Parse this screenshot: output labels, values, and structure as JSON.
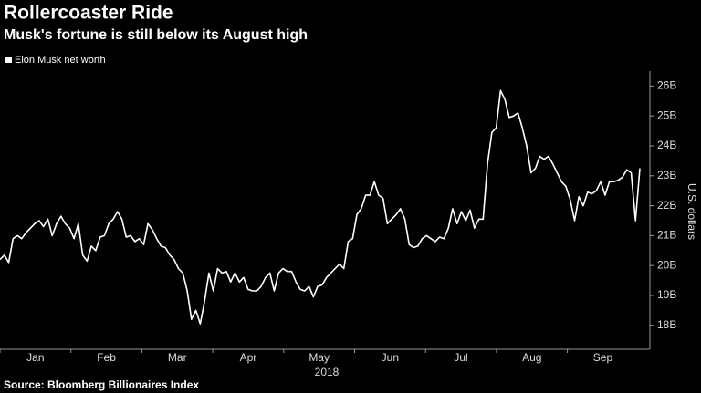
{
  "chart_data": {
    "type": "line",
    "title": "Rollercoaster Ride",
    "subtitle": "Musk's fortune is still below its August high",
    "source": "Source: Bloomberg Billionaires Index",
    "y_axis_label": "U.S. dollars",
    "x_axis_label": "2018",
    "x_tick_labels": [
      "Jan",
      "Feb",
      "Mar",
      "Apr",
      "May",
      "Jun",
      "Jul",
      "Aug",
      "Sep"
    ],
    "ylim": [
      17.2,
      26.5
    ],
    "yticks": [
      {
        "value": 18,
        "label": "18B"
      },
      {
        "value": 19,
        "label": "19B"
      },
      {
        "value": 20,
        "label": "20B"
      },
      {
        "value": 21,
        "label": "21B"
      },
      {
        "value": 22,
        "label": "22B"
      },
      {
        "value": 23,
        "label": "23B"
      },
      {
        "value": 24,
        "label": "24B"
      },
      {
        "value": 25,
        "label": "25B"
      },
      {
        "value": 26,
        "label": "26B"
      }
    ],
    "series": [
      {
        "name": "Elon Musk net worth",
        "color": "#ffffff",
        "values": [
          20.2,
          20.35,
          20.1,
          20.9,
          21.0,
          20.9,
          21.1,
          21.25,
          21.4,
          21.5,
          21.3,
          21.55,
          21.0,
          21.4,
          21.65,
          21.4,
          21.25,
          20.9,
          21.4,
          20.35,
          20.15,
          20.65,
          20.5,
          20.95,
          21.0,
          21.4,
          21.55,
          21.8,
          21.55,
          20.95,
          21.0,
          20.8,
          20.9,
          20.7,
          21.4,
          21.2,
          20.9,
          20.65,
          20.6,
          20.35,
          20.2,
          19.9,
          19.75,
          19.15,
          18.2,
          18.5,
          18.05,
          18.8,
          19.75,
          19.15,
          19.9,
          19.75,
          19.8,
          19.45,
          19.75,
          19.45,
          19.6,
          19.2,
          19.15,
          19.15,
          19.3,
          19.6,
          19.75,
          19.15,
          19.75,
          19.9,
          19.8,
          19.8,
          19.45,
          19.2,
          19.15,
          19.3,
          18.95,
          19.3,
          19.35,
          19.6,
          19.75,
          19.9,
          20.05,
          19.9,
          20.8,
          20.9,
          21.7,
          21.9,
          22.35,
          22.35,
          22.8,
          22.35,
          22.25,
          21.4,
          21.55,
          21.7,
          21.9,
          21.55,
          20.7,
          20.6,
          20.65,
          20.9,
          21.0,
          20.9,
          20.8,
          20.95,
          20.9,
          21.25,
          21.9,
          21.4,
          21.8,
          21.5,
          21.85,
          21.25,
          21.55,
          21.55,
          23.4,
          24.45,
          24.6,
          25.85,
          25.55,
          24.95,
          25.0,
          25.1,
          24.6,
          24.0,
          23.1,
          23.25,
          23.65,
          23.55,
          23.65,
          23.4,
          23.1,
          22.8,
          22.65,
          22.2,
          21.5,
          22.3,
          22.0,
          22.45,
          22.4,
          22.5,
          22.8,
          22.35,
          22.8,
          22.8,
          22.85,
          22.95,
          23.2,
          23.1,
          21.5,
          23.25
        ]
      }
    ]
  }
}
